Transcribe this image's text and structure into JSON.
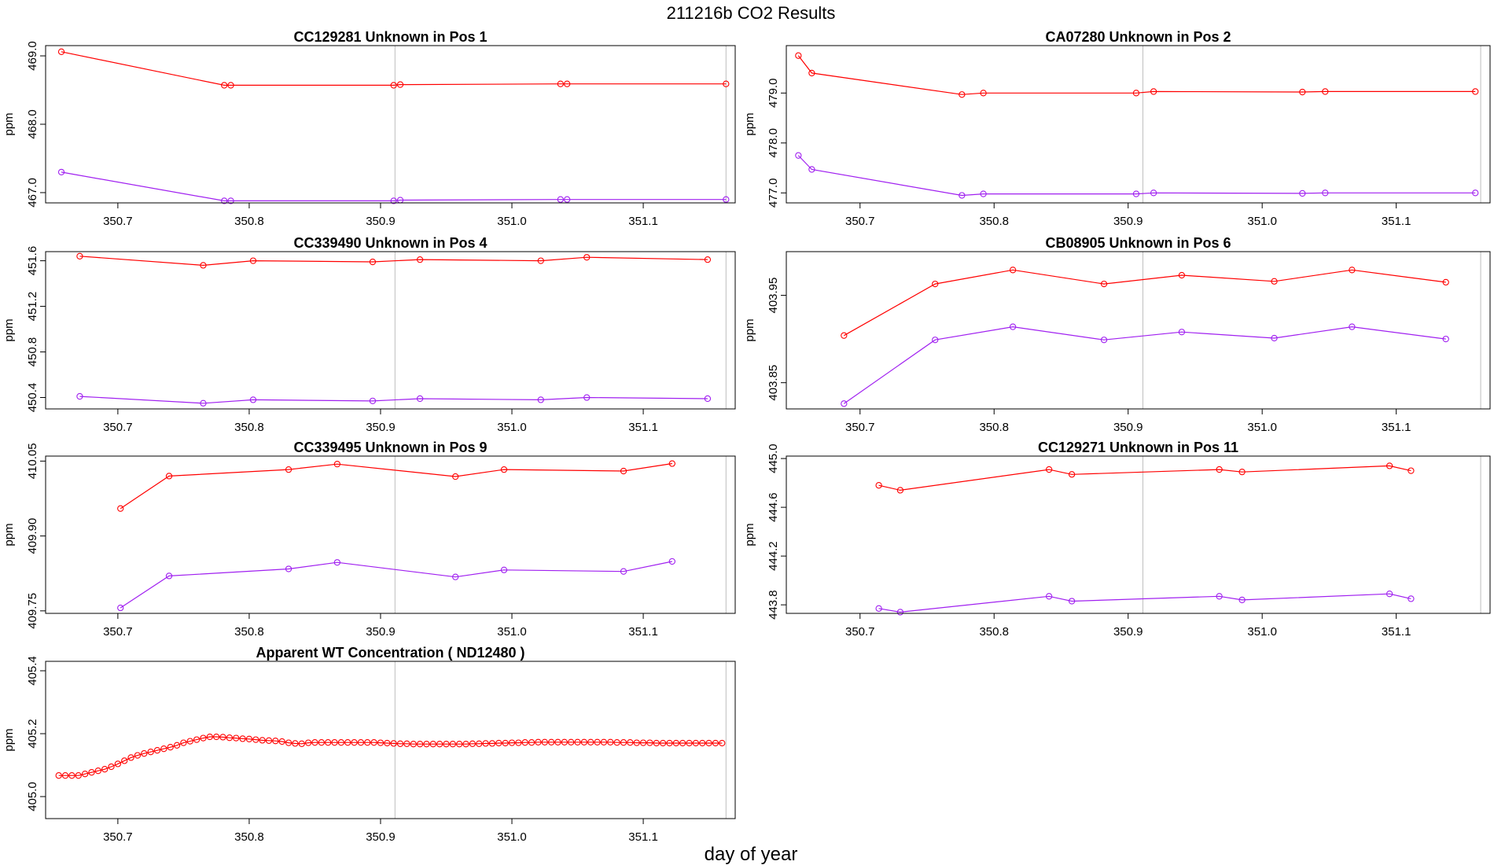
{
  "figure": {
    "title": "211216b  CO2 Results",
    "xlabel": "day of year",
    "colors": {
      "upper": "#ff0000",
      "lower": "#a020f0",
      "grid": "#bebebe",
      "frame": "#000000"
    }
  },
  "chart_data": [
    {
      "type": "line",
      "title": "CC129281    Unknown in Pos 1",
      "xlabel": "",
      "ylabel": "ppm",
      "xlim": [
        350.645,
        351.17
      ],
      "ylim": [
        466.85,
        469.15
      ],
      "xticks": [
        "350.7",
        "350.8",
        "350.9",
        "351.0",
        "351.1"
      ],
      "xtick_values": [
        350.7,
        350.8,
        350.9,
        351.0,
        351.1
      ],
      "yticks": [
        "467.0",
        "468.0",
        "469.0"
      ],
      "ytick_values": [
        467.0,
        468.0,
        469.0
      ],
      "vlines": [
        350.911,
        351.163
      ],
      "series": [
        {
          "name": "upper",
          "color": "#ff0000",
          "x": [
            350.657,
            350.781,
            350.786,
            350.91,
            350.915,
            351.037,
            351.042,
            351.163
          ],
          "y": [
            469.06,
            468.57,
            468.57,
            468.57,
            468.58,
            468.59,
            468.59,
            468.59
          ]
        },
        {
          "name": "lower",
          "color": "#a020f0",
          "x": [
            350.657,
            350.781,
            350.786,
            350.91,
            350.915,
            351.037,
            351.042,
            351.163
          ],
          "y": [
            467.3,
            466.88,
            466.88,
            466.88,
            466.89,
            466.9,
            466.9,
            466.9
          ]
        }
      ]
    },
    {
      "type": "line",
      "title": "CA07280    Unknown in Pos 2",
      "xlabel": "",
      "ylabel": "ppm",
      "xlim": [
        350.645,
        351.17
      ],
      "ylim": [
        476.8,
        479.95
      ],
      "xticks": [
        "350.7",
        "350.8",
        "350.9",
        "351.0",
        "351.1"
      ],
      "xtick_values": [
        350.7,
        350.8,
        350.9,
        351.0,
        351.1
      ],
      "yticks": [
        "477.0",
        "478.0",
        "479.0"
      ],
      "ytick_values": [
        477.0,
        478.0,
        479.0
      ],
      "vlines": [
        350.911,
        351.163
      ],
      "series": [
        {
          "name": "upper",
          "color": "#ff0000",
          "x": [
            350.654,
            350.664,
            350.776,
            350.792,
            350.906,
            350.919,
            351.03,
            351.047,
            351.159
          ],
          "y": [
            479.75,
            479.4,
            478.97,
            479.0,
            479.0,
            479.03,
            479.02,
            479.03,
            479.03
          ]
        },
        {
          "name": "lower",
          "color": "#a020f0",
          "x": [
            350.654,
            350.664,
            350.776,
            350.792,
            350.906,
            350.919,
            351.03,
            351.047,
            351.159
          ],
          "y": [
            477.75,
            477.47,
            476.95,
            476.98,
            476.98,
            477.0,
            476.99,
            477.0,
            477.0
          ]
        }
      ]
    },
    {
      "type": "line",
      "title": "CC339490    Unknown in Pos 4",
      "xlabel": "",
      "ylabel": "ppm",
      "xlim": [
        350.645,
        351.17
      ],
      "ylim": [
        450.3,
        451.68
      ],
      "xticks": [
        "350.7",
        "350.8",
        "350.9",
        "351.0",
        "351.1"
      ],
      "xtick_values": [
        350.7,
        350.8,
        350.9,
        351.0,
        351.1
      ],
      "yticks": [
        "450.4",
        "450.8",
        "451.2",
        "451.6"
      ],
      "ytick_values": [
        450.4,
        450.8,
        451.2,
        451.6
      ],
      "vlines": [
        350.911,
        351.163
      ],
      "series": [
        {
          "name": "upper",
          "color": "#ff0000",
          "x": [
            350.671,
            350.765,
            350.803,
            350.894,
            350.93,
            351.022,
            351.057,
            351.149
          ],
          "y": [
            451.64,
            451.56,
            451.6,
            451.59,
            451.61,
            451.6,
            451.63,
            451.61
          ]
        },
        {
          "name": "lower",
          "color": "#a020f0",
          "x": [
            350.671,
            350.765,
            350.803,
            350.894,
            350.93,
            351.022,
            351.057,
            351.149
          ],
          "y": [
            450.41,
            450.35,
            450.38,
            450.37,
            450.39,
            450.38,
            450.4,
            450.39
          ]
        }
      ]
    },
    {
      "type": "line",
      "title": "CB08905    Unknown in Pos 6",
      "xlabel": "",
      "ylabel": "ppm",
      "xlim": [
        350.645,
        351.17
      ],
      "ylim": [
        403.82,
        404.0
      ],
      "xticks": [
        "350.7",
        "350.8",
        "350.9",
        "351.0",
        "351.1"
      ],
      "xtick_values": [
        350.7,
        350.8,
        350.9,
        351.0,
        351.1
      ],
      "yticks": [
        "403.85",
        "403.95"
      ],
      "ytick_values": [
        403.85,
        403.95
      ],
      "vlines": [
        350.911,
        351.163
      ],
      "series": [
        {
          "name": "upper",
          "color": "#ff0000",
          "x": [
            350.688,
            350.756,
            350.814,
            350.882,
            350.94,
            351.009,
            351.067,
            351.137
          ],
          "y": [
            403.904,
            403.963,
            403.979,
            403.963,
            403.973,
            403.966,
            403.979,
            403.965
          ]
        },
        {
          "name": "lower",
          "color": "#a020f0",
          "x": [
            350.688,
            350.756,
            350.814,
            350.882,
            350.94,
            351.009,
            351.067,
            351.137
          ],
          "y": [
            403.826,
            403.899,
            403.914,
            403.899,
            403.908,
            403.901,
            403.914,
            403.9
          ]
        }
      ]
    },
    {
      "type": "line",
      "title": "CC339495    Unknown in Pos 9",
      "xlabel": "",
      "ylabel": "ppm",
      "xlim": [
        350.645,
        351.17
      ],
      "ylim": [
        409.745,
        410.06
      ],
      "xticks": [
        "350.7",
        "350.8",
        "350.9",
        "351.0",
        "351.1"
      ],
      "xtick_values": [
        350.7,
        350.8,
        350.9,
        351.0,
        351.1
      ],
      "yticks": [
        "409.75",
        "409.90",
        "410.05"
      ],
      "ytick_values": [
        409.75,
        409.9,
        410.05
      ],
      "vlines": [
        350.911,
        351.163
      ],
      "series": [
        {
          "name": "upper",
          "color": "#ff0000",
          "x": [
            350.702,
            350.739,
            350.83,
            350.867,
            350.957,
            350.994,
            351.085,
            351.122
          ],
          "y": [
            409.955,
            410.02,
            410.033,
            410.044,
            410.019,
            410.033,
            410.03,
            410.045
          ]
        },
        {
          "name": "lower",
          "color": "#a020f0",
          "x": [
            350.702,
            350.739,
            350.83,
            350.867,
            350.957,
            350.994,
            351.085,
            351.122
          ],
          "y": [
            409.756,
            409.82,
            409.834,
            409.847,
            409.818,
            409.832,
            409.829,
            409.849
          ]
        }
      ]
    },
    {
      "type": "line",
      "title": "CC129271    Unknown in Pos 11",
      "xlabel": "",
      "ylabel": "ppm",
      "xlim": [
        350.645,
        351.17
      ],
      "ylim": [
        443.73,
        445.02
      ],
      "xticks": [
        "350.7",
        "350.8",
        "350.9",
        "351.0",
        "351.1"
      ],
      "xtick_values": [
        350.7,
        350.8,
        350.9,
        351.0,
        351.1
      ],
      "yticks": [
        "443.8",
        "444.2",
        "444.6",
        "445.0"
      ],
      "ytick_values": [
        443.8,
        444.2,
        444.6,
        445.0
      ],
      "vlines": [
        350.911,
        351.163
      ],
      "series": [
        {
          "name": "upper",
          "color": "#ff0000",
          "x": [
            350.714,
            350.73,
            350.841,
            350.858,
            350.968,
            350.985,
            351.095,
            351.111
          ],
          "y": [
            444.78,
            444.74,
            444.91,
            444.87,
            444.91,
            444.89,
            444.94,
            444.9
          ]
        },
        {
          "name": "lower",
          "color": "#a020f0",
          "x": [
            350.714,
            350.73,
            350.841,
            350.858,
            350.968,
            350.985,
            351.095,
            351.111
          ],
          "y": [
            443.77,
            443.74,
            443.87,
            443.83,
            443.87,
            443.84,
            443.89,
            443.85
          ]
        }
      ]
    },
    {
      "type": "line",
      "title": "Apparent WT Concentration ( ND12480 )",
      "xlabel": "",
      "ylabel": "ppm",
      "xlim": [
        350.645,
        351.17
      ],
      "ylim": [
        404.93,
        405.43
      ],
      "xticks": [
        "350.7",
        "350.8",
        "350.9",
        "351.0",
        "351.1"
      ],
      "xtick_values": [
        350.7,
        350.8,
        350.9,
        351.0,
        351.1
      ],
      "yticks": [
        "405.0",
        "405.2",
        "405.4"
      ],
      "ytick_values": [
        405.0,
        405.2,
        405.4
      ],
      "vlines": [
        350.911,
        351.163
      ],
      "series": [
        {
          "name": "upper",
          "color": "#ff0000",
          "x": [
            350.655,
            350.66,
            350.665,
            350.67,
            350.675,
            350.68,
            350.685,
            350.69,
            350.695,
            350.7,
            350.705,
            350.71,
            350.715,
            350.72,
            350.725,
            350.73,
            350.735,
            350.74,
            350.745,
            350.75,
            350.755,
            350.76,
            350.765,
            350.77,
            350.775,
            350.78,
            350.785,
            350.79,
            350.795,
            350.8,
            350.805,
            350.81,
            350.815,
            350.82,
            350.825,
            350.83,
            350.835,
            350.84,
            350.845,
            350.85,
            350.855,
            350.86,
            350.865,
            350.87,
            350.875,
            350.88,
            350.885,
            350.89,
            350.895,
            350.9,
            350.905,
            350.91,
            350.915,
            350.92,
            350.925,
            350.93,
            350.935,
            350.94,
            350.945,
            350.95,
            350.955,
            350.96,
            350.965,
            350.97,
            350.975,
            350.98,
            350.985,
            350.99,
            350.995,
            351.0,
            351.005,
            351.01,
            351.015,
            351.02,
            351.025,
            351.03,
            351.035,
            351.04,
            351.045,
            351.05,
            351.055,
            351.06,
            351.065,
            351.07,
            351.075,
            351.08,
            351.085,
            351.09,
            351.095,
            351.1,
            351.105,
            351.11,
            351.115,
            351.12,
            351.125,
            351.13,
            351.135,
            351.14,
            351.145,
            351.15,
            351.155,
            351.16
          ],
          "y": [
            405.067,
            405.067,
            405.067,
            405.067,
            405.072,
            405.077,
            405.082,
            405.087,
            405.095,
            405.104,
            405.114,
            405.124,
            405.131,
            405.137,
            405.142,
            405.147,
            405.152,
            405.157,
            405.163,
            405.171,
            405.176,
            405.181,
            405.186,
            405.19,
            405.19,
            405.189,
            405.187,
            405.186,
            405.184,
            405.183,
            405.181,
            405.179,
            405.178,
            405.177,
            405.175,
            405.171,
            405.169,
            405.168,
            405.171,
            405.172,
            405.172,
            405.172,
            405.172,
            405.172,
            405.172,
            405.172,
            405.172,
            405.172,
            405.172,
            405.171,
            405.17,
            405.169,
            405.168,
            405.168,
            405.167,
            405.167,
            405.167,
            405.167,
            405.167,
            405.167,
            405.167,
            405.167,
            405.167,
            405.168,
            405.168,
            405.169,
            405.169,
            405.17,
            405.17,
            405.171,
            405.171,
            405.172,
            405.172,
            405.173,
            405.173,
            405.173,
            405.173,
            405.173,
            405.173,
            405.173,
            405.173,
            405.173,
            405.173,
            405.173,
            405.173,
            405.172,
            405.172,
            405.172,
            405.171,
            405.171,
            405.171,
            405.17,
            405.17,
            405.17,
            405.17,
            405.17,
            405.17,
            405.17,
            405.17,
            405.17,
            405.17,
            405.17
          ]
        }
      ]
    }
  ]
}
